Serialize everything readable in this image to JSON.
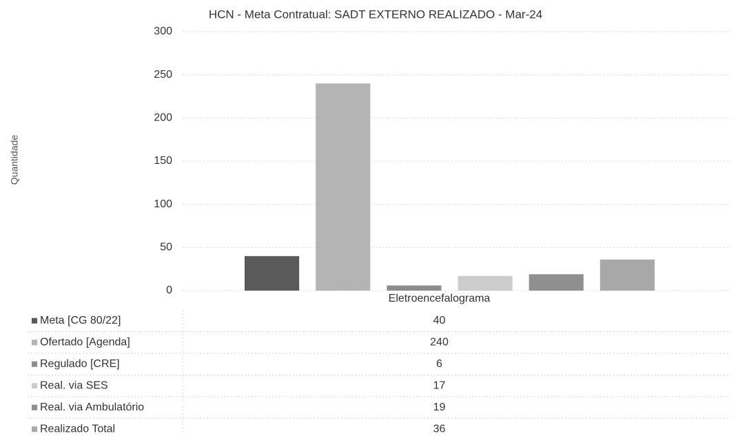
{
  "chart_data": {
    "type": "bar",
    "title": "HCN - Meta Contratual: SADT EXTERNO REALIZADO - Mar-24",
    "y_label": "Quantidade",
    "categories": [
      "Eletroencefalograma"
    ],
    "series": [
      {
        "name": "Meta [CG 80/22]",
        "color": "#5a5a5a",
        "values": [
          40
        ]
      },
      {
        "name": "Ofertado [Agenda]",
        "color": "#b4b4b4",
        "values": [
          240
        ]
      },
      {
        "name": "Regulado [CRE]",
        "color": "#8c8c8c",
        "values": [
          6
        ]
      },
      {
        "name": "Real. via SES",
        "color": "#cccccc",
        "values": [
          17
        ]
      },
      {
        "name": "Real. via Ambulatório",
        "color": "#8f8f8f",
        "values": [
          19
        ]
      },
      {
        "name": "Realizado Total",
        "color": "#a8a8a8",
        "values": [
          36
        ]
      }
    ],
    "ylim": [
      0,
      300
    ],
    "yticks": [
      0,
      50,
      100,
      150,
      200,
      250,
      300
    ],
    "grid": true
  }
}
